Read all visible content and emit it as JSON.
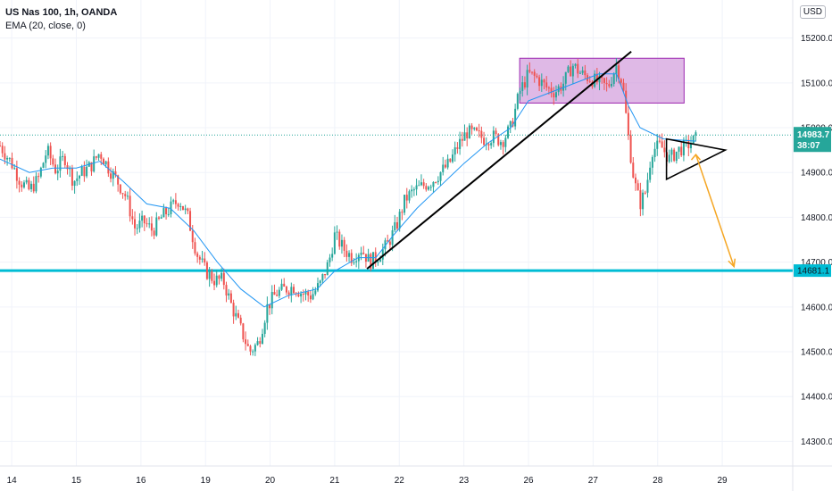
{
  "legend": {
    "symbol": "US Nas 100, 1h, OANDA",
    "indicator": "EMA (20, close, 0)"
  },
  "currency_label": "USD",
  "colors": {
    "up": "#26a69a",
    "down": "#ef5350",
    "ema": "#2196f3",
    "support": "#00bcd4",
    "zone_fill": "#ce93d8",
    "zone_border": "#9c27b0",
    "projection": "#f5a623",
    "trendline": "#000000",
    "last_price": "#26a69a"
  },
  "chart_data": {
    "type": "candlestick",
    "title": "",
    "y_ticks": [
      14300,
      14400,
      14500,
      14600,
      14700,
      14800,
      14900,
      15000,
      15100,
      15200
    ],
    "y_tick_labels": [
      "14300.0",
      "14400.0",
      "14500.0",
      "14600.0",
      "14700.0",
      "14800.0",
      "14900.0",
      "15000.0",
      "15100.0",
      "15200.0"
    ],
    "ylim": [
      14245,
      15285
    ],
    "x_ticks": [
      {
        "label": "14",
        "pos": 0
      },
      {
        "label": "15",
        "pos": 22
      },
      {
        "label": "16",
        "pos": 44
      },
      {
        "label": "19",
        "pos": 66
      },
      {
        "label": "20",
        "pos": 88
      },
      {
        "label": "21",
        "pos": 110
      },
      {
        "label": "22",
        "pos": 132
      },
      {
        "label": "23",
        "pos": 154
      },
      {
        "label": "26",
        "pos": 176
      },
      {
        "label": "27",
        "pos": 198
      },
      {
        "label": "28",
        "pos": 220
      },
      {
        "label": "29",
        "pos": 242
      }
    ],
    "xlim": [
      -4,
      266
    ],
    "last_price": {
      "value": 14983.7,
      "label": "14983.7",
      "countdown": "38:07"
    },
    "support": {
      "value": 14681.1,
      "label": "14681.1"
    },
    "price_path": [
      [
        -4,
        14960
      ],
      [
        0,
        14920
      ],
      [
        3,
        14880
      ],
      [
        6,
        14860
      ],
      [
        9,
        14885
      ],
      [
        12,
        14950
      ],
      [
        15,
        14905
      ],
      [
        18,
        14935
      ],
      [
        21,
        14880
      ],
      [
        24,
        14900
      ],
      [
        27,
        14915
      ],
      [
        30,
        14945
      ],
      [
        33,
        14910
      ],
      [
        36,
        14880
      ],
      [
        39,
        14845
      ],
      [
        42,
        14775
      ],
      [
        45,
        14790
      ],
      [
        48,
        14770
      ],
      [
        51,
        14800
      ],
      [
        54,
        14820
      ],
      [
        57,
        14840
      ],
      [
        60,
        14800
      ],
      [
        63,
        14720
      ],
      [
        66,
        14680
      ],
      [
        69,
        14660
      ],
      [
        72,
        14660
      ],
      [
        75,
        14600
      ],
      [
        78,
        14550
      ],
      [
        81,
        14500
      ],
      [
        84,
        14520
      ],
      [
        87,
        14600
      ],
      [
        90,
        14630
      ],
      [
        93,
        14640
      ],
      [
        96,
        14645
      ],
      [
        99,
        14630
      ],
      [
        102,
        14625
      ],
      [
        105,
        14650
      ],
      [
        108,
        14700
      ],
      [
        110,
        14760
      ],
      [
        113,
        14730
      ],
      [
        116,
        14710
      ],
      [
        119,
        14730
      ],
      [
        122,
        14700
      ],
      [
        125,
        14715
      ],
      [
        128,
        14740
      ],
      [
        131,
        14780
      ],
      [
        134,
        14840
      ],
      [
        137,
        14860
      ],
      [
        140,
        14870
      ],
      [
        143,
        14880
      ],
      [
        146,
        14900
      ],
      [
        149,
        14920
      ],
      [
        152,
        14960
      ],
      [
        155,
        14990
      ],
      [
        158,
        14985
      ],
      [
        161,
        14975
      ],
      [
        164,
        14980
      ],
      [
        167,
        14970
      ],
      [
        170,
        15000
      ],
      [
        173,
        15080
      ],
      [
        176,
        15120
      ],
      [
        179,
        15110
      ],
      [
        182,
        15090
      ],
      [
        185,
        15080
      ],
      [
        188,
        15100
      ],
      [
        191,
        15140
      ],
      [
        194,
        15120
      ],
      [
        197,
        15110
      ],
      [
        200,
        15100
      ],
      [
        203,
        15090
      ],
      [
        206,
        15140
      ],
      [
        208,
        15100
      ],
      [
        210,
        14980
      ],
      [
        212,
        14880
      ],
      [
        214,
        14830
      ],
      [
        216,
        14860
      ],
      [
        218,
        14950
      ],
      [
        221,
        14960
      ],
      [
        224,
        14930
      ],
      [
        227,
        14950
      ],
      [
        230,
        14960
      ],
      [
        233,
        14975
      ]
    ],
    "ema_series": [
      [
        -4,
        14930
      ],
      [
        6,
        14900
      ],
      [
        14,
        14910
      ],
      [
        22,
        14910
      ],
      [
        30,
        14925
      ],
      [
        38,
        14880
      ],
      [
        46,
        14830
      ],
      [
        54,
        14820
      ],
      [
        62,
        14770
      ],
      [
        70,
        14700
      ],
      [
        78,
        14640
      ],
      [
        86,
        14600
      ],
      [
        94,
        14625
      ],
      [
        104,
        14640
      ],
      [
        110,
        14680
      ],
      [
        118,
        14710
      ],
      [
        124,
        14710
      ],
      [
        130,
        14760
      ],
      [
        138,
        14820
      ],
      [
        146,
        14870
      ],
      [
        154,
        14920
      ],
      [
        162,
        14965
      ],
      [
        170,
        15000
      ],
      [
        176,
        15060
      ],
      [
        184,
        15080
      ],
      [
        192,
        15100
      ],
      [
        200,
        15120
      ],
      [
        206,
        15120
      ],
      [
        210,
        15050
      ],
      [
        214,
        15000
      ],
      [
        222,
        14975
      ],
      [
        233,
        14970
      ]
    ],
    "annotations": {
      "zone": {
        "x0": 173,
        "x1": 229,
        "y0": 15055,
        "y1": 15155
      },
      "trendline": {
        "x0": 121,
        "y0": 14685,
        "x1": 211,
        "y1": 15170
      },
      "triangle": [
        [
          223,
          14975
        ],
        [
          243,
          14950
        ],
        [
          223,
          14885
        ]
      ],
      "projection": {
        "x0": 233,
        "y0": 14940,
        "x1": 246,
        "y1": 14690
      }
    }
  }
}
